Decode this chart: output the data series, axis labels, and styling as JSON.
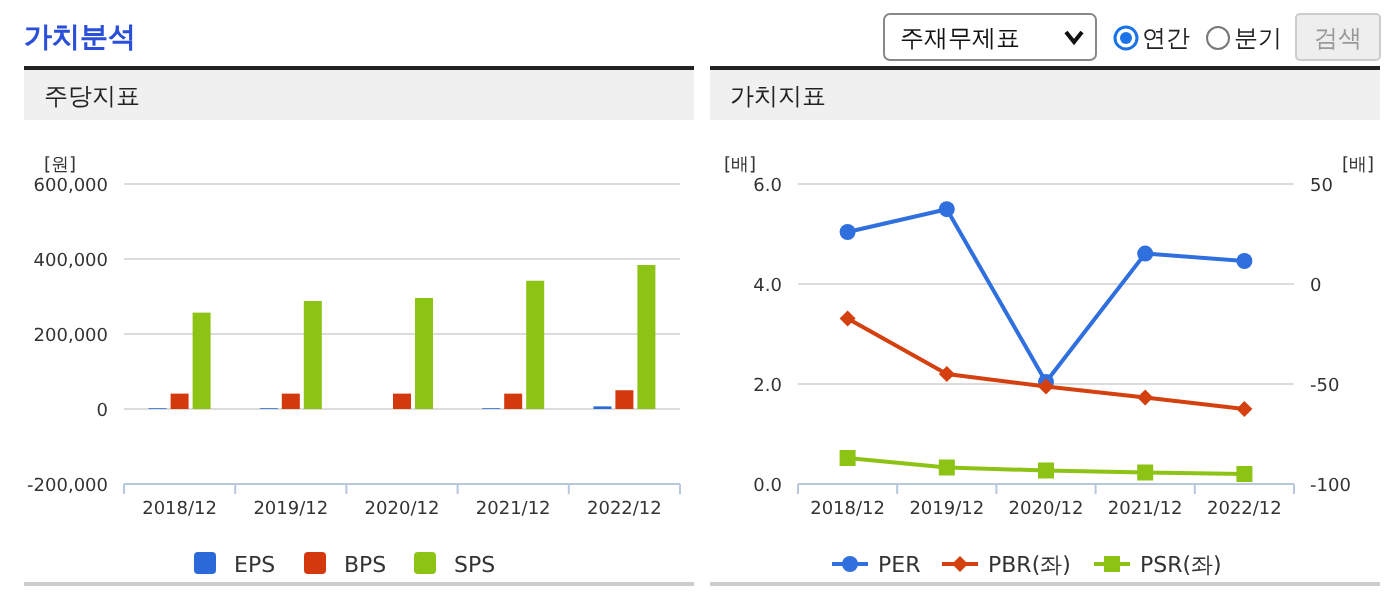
{
  "chart_data": [
    {
      "type": "bar",
      "title": "주당지표",
      "ylabel": "[원]",
      "annotations": [
        "가치분석"
      ],
      "categories": [
        "2018/12",
        "2019/12",
        "2020/12",
        "2021/12",
        "2022/12"
      ],
      "series": [
        {
          "name": "EPS",
          "color": "#2a6ad8",
          "values": [
            2000,
            2000,
            0,
            2000,
            7000
          ]
        },
        {
          "name": "BPS",
          "color": "#d4380d",
          "values": [
            41000,
            41000,
            41000,
            41000,
            50000
          ]
        },
        {
          "name": "SPS",
          "color": "#8cc314",
          "values": [
            257000,
            288000,
            296000,
            342000,
            384000
          ]
        }
      ],
      "ylim": [
        -200000,
        600000
      ],
      "yticks": [
        {
          "value": -200000,
          "label": "-200,000"
        },
        {
          "value": 0,
          "label": "0"
        },
        {
          "value": 200000,
          "label": "200,000"
        },
        {
          "value": 400000,
          "label": "400,000"
        },
        {
          "value": 600000,
          "label": "600,000"
        }
      ],
      "grid": "y",
      "legend": "bottom"
    },
    {
      "type": "line",
      "title": "가치지표",
      "ylabel": "[배]",
      "y2label": "[배]",
      "annotations": [
        "주재무제표",
        "연간",
        "분기",
        "검색"
      ],
      "categories": [
        "2018/12",
        "2019/12",
        "2020/12",
        "2021/12",
        "2022/12"
      ],
      "series": [
        {
          "name": "PER",
          "color": "#2f6fde",
          "axis": "y2",
          "marker": "circle",
          "values": [
            26,
            37.4,
            -49,
            15.2,
            11.5
          ]
        },
        {
          "name": "PBR(좌)",
          "color": "#d4400f",
          "marker": "diamond",
          "values": [
            3.31,
            2.2,
            1.95,
            1.73,
            1.5
          ]
        },
        {
          "name": "PSR(좌)",
          "color": "#8cc314",
          "marker": "square",
          "values": [
            0.52,
            0.33,
            0.27,
            0.23,
            0.2
          ]
        }
      ],
      "ylim": [
        0,
        6
      ],
      "yticks": [
        {
          "value": 0,
          "label": "0.0"
        },
        {
          "value": 2,
          "label": "2.0"
        },
        {
          "value": 4,
          "label": "4.0"
        },
        {
          "value": 6,
          "label": "6.0"
        }
      ],
      "y2lim": [
        -100,
        50
      ],
      "y2ticks": [
        -100,
        -50,
        0,
        50
      ],
      "grid": "y",
      "legend": "bottom"
    }
  ]
}
